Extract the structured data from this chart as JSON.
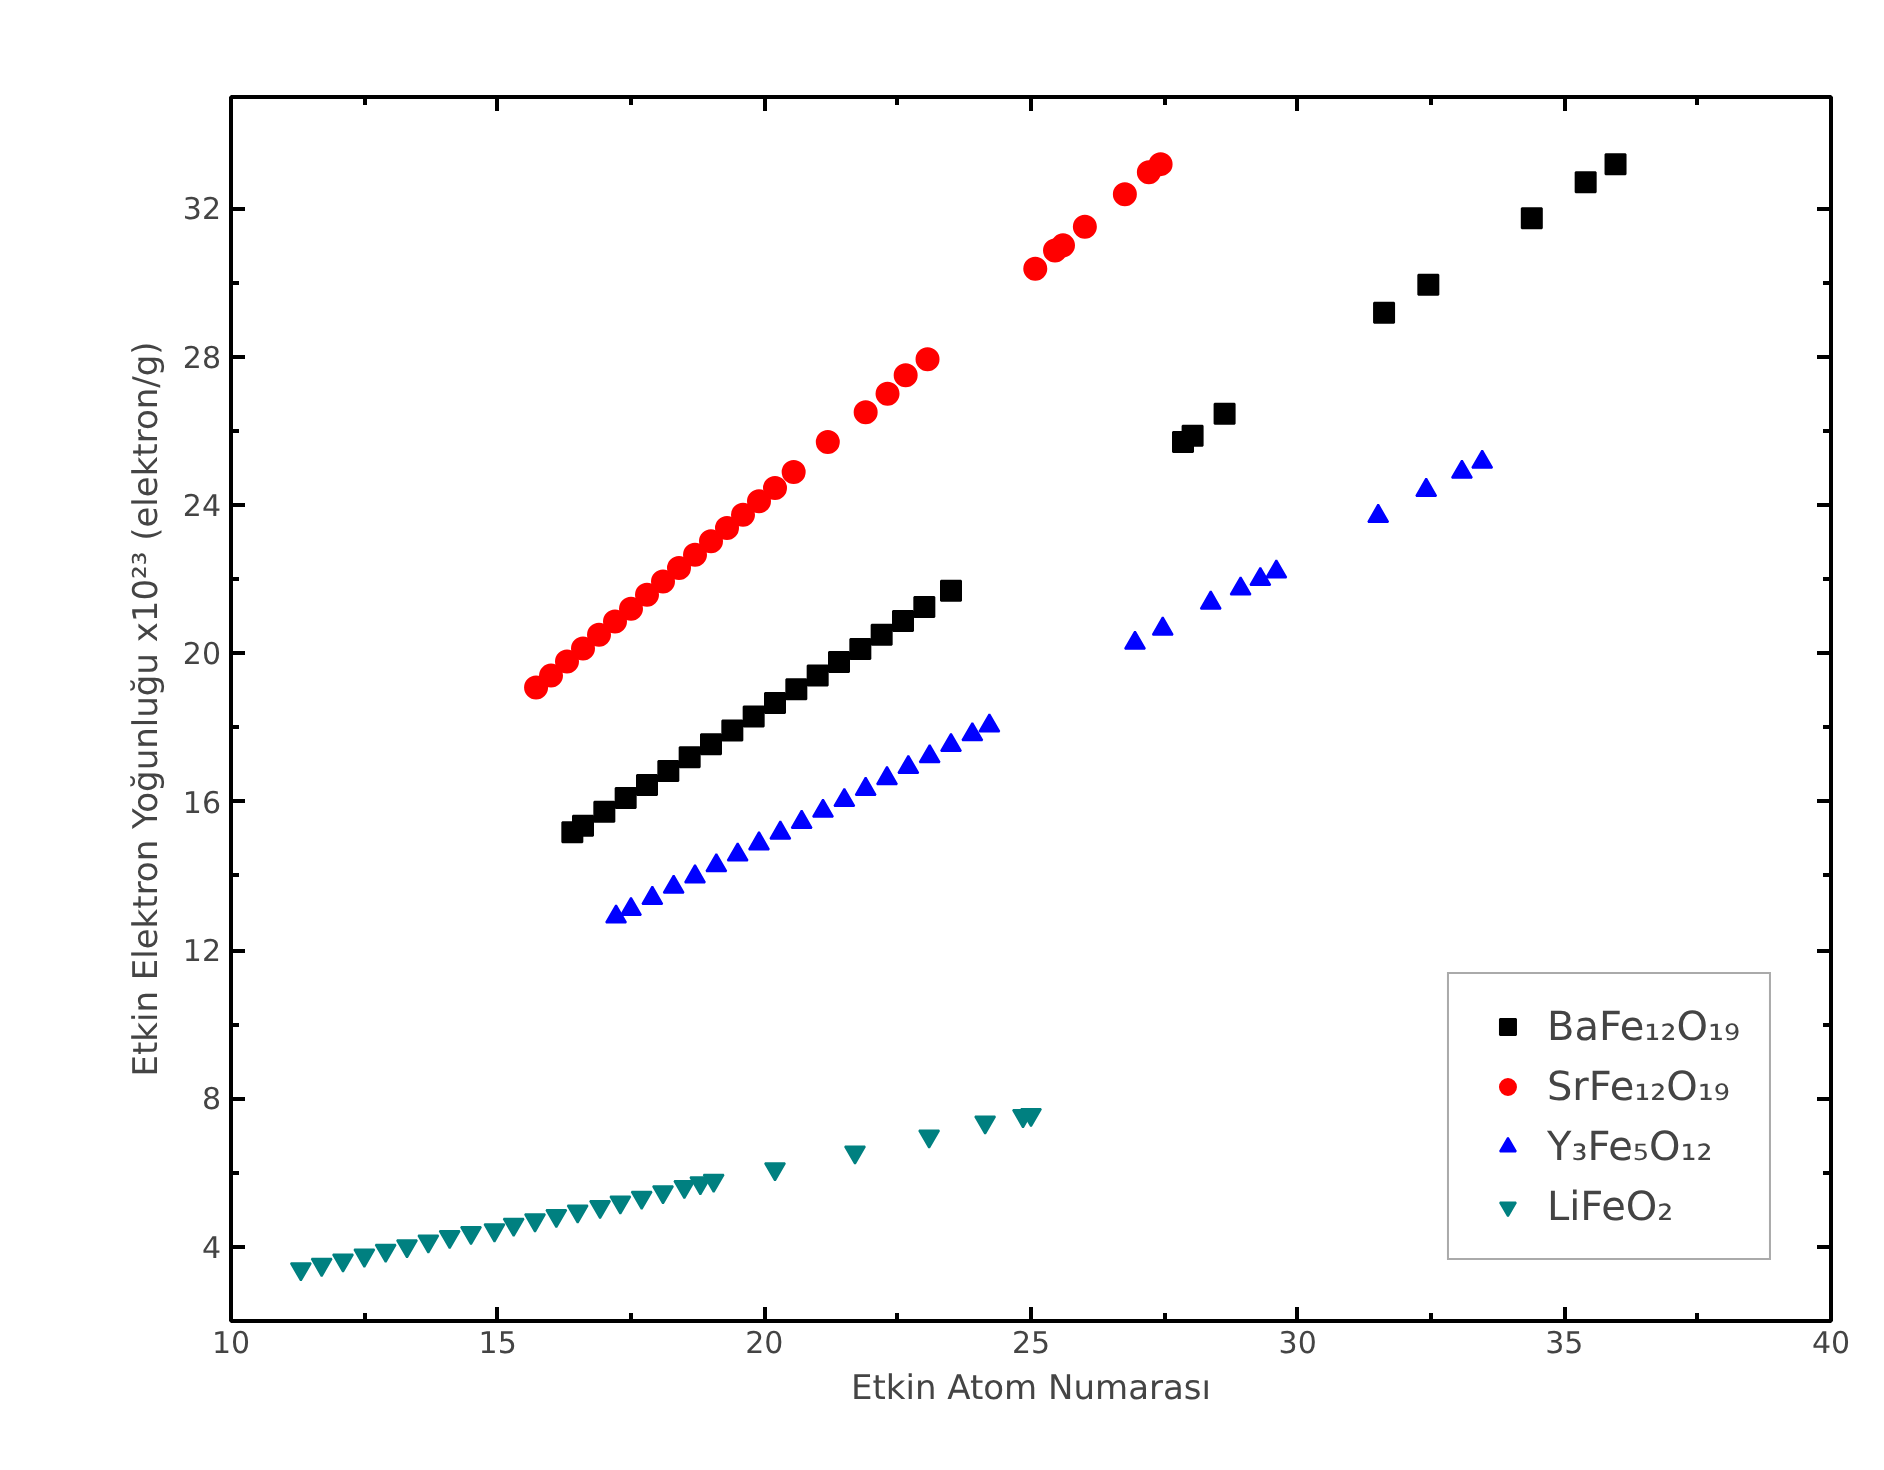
{
  "chart_data": {
    "type": "scatter",
    "xlabel": "Etkin Atom Numarası",
    "ylabel": "Etkin Elektron Yoğunluğu x10²³ (elektron/g)",
    "xlim": [
      10,
      40
    ],
    "xticks": [
      10,
      15,
      20,
      25,
      30,
      35,
      40
    ],
    "ylim": [
      2,
      35
    ],
    "yticks": [
      4,
      8,
      12,
      16,
      20,
      24,
      28,
      32
    ],
    "grid": false,
    "legend": "bottom right",
    "series": [
      {
        "name": "BaFe₁₂O₁₉",
        "color": "#000000",
        "marker": "square",
        "x": [
          16.4,
          16.6,
          17.0,
          17.4,
          17.8,
          18.2,
          18.6,
          19.0,
          19.4,
          19.8,
          20.2,
          20.6,
          21.0,
          21.4,
          21.8,
          22.2,
          22.6,
          23.0,
          23.5,
          27.85,
          28.03,
          28.63,
          31.62,
          32.45,
          34.39,
          35.4,
          35.96
        ],
        "values": [
          15.18,
          15.35,
          15.73,
          16.1,
          16.45,
          16.83,
          17.2,
          17.55,
          17.92,
          18.3,
          18.66,
          19.03,
          19.4,
          19.77,
          20.12,
          20.5,
          20.87,
          21.25,
          21.69,
          25.7,
          25.87,
          26.46,
          29.18,
          29.94,
          31.73,
          32.7,
          33.19
        ]
      },
      {
        "name": "SrFe₁₂O₁₉",
        "color": "#ff0000",
        "marker": "circle",
        "x": [
          15.72,
          16.0,
          16.3,
          16.6,
          16.9,
          17.2,
          17.5,
          17.8,
          18.1,
          18.4,
          18.7,
          19.0,
          19.3,
          19.6,
          19.9,
          20.2,
          20.55,
          21.19,
          21.9,
          22.31,
          22.65,
          23.06,
          25.08,
          25.45,
          25.6,
          26.01,
          26.76,
          27.21,
          27.43
        ],
        "values": [
          19.08,
          19.4,
          19.78,
          20.13,
          20.5,
          20.86,
          21.2,
          21.58,
          21.94,
          22.3,
          22.66,
          23.02,
          23.38,
          23.74,
          24.1,
          24.46,
          24.89,
          25.7,
          26.5,
          27.0,
          27.5,
          27.93,
          30.37,
          30.86,
          31.0,
          31.5,
          32.38,
          32.97,
          33.19
        ]
      },
      {
        "name": "Y₃Fe₅O₁₂",
        "color": "#0000ff",
        "marker": "triangle",
        "x": [
          17.22,
          17.5,
          17.9,
          18.3,
          18.7,
          19.1,
          19.5,
          19.9,
          20.3,
          20.7,
          21.1,
          21.5,
          21.9,
          22.3,
          22.7,
          23.1,
          23.5,
          23.9,
          24.22,
          26.95,
          27.47,
          28.37,
          28.93,
          29.3,
          29.6,
          31.51,
          32.41,
          33.08,
          33.46
        ],
        "values": [
          12.9,
          13.1,
          13.4,
          13.7,
          13.98,
          14.28,
          14.57,
          14.87,
          15.16,
          15.45,
          15.75,
          16.04,
          16.34,
          16.63,
          16.93,
          17.22,
          17.52,
          17.81,
          18.05,
          20.28,
          20.66,
          21.36,
          21.74,
          22.0,
          22.2,
          23.7,
          24.4,
          24.89,
          25.16
        ]
      },
      {
        "name": "LiFeO₂",
        "color": "#008080",
        "x": [
          11.31,
          11.7,
          12.1,
          12.5,
          12.9,
          13.3,
          13.7,
          14.1,
          14.5,
          14.94,
          15.3,
          15.7,
          16.1,
          16.5,
          16.92,
          17.3,
          17.7,
          18.1,
          18.5,
          18.8,
          19.05,
          20.2,
          21.7,
          23.09,
          24.14,
          24.85,
          25.0
        ],
        "values": [
          3.4,
          3.52,
          3.64,
          3.77,
          3.9,
          4.02,
          4.15,
          4.27,
          4.38,
          4.45,
          4.6,
          4.72,
          4.84,
          4.96,
          5.08,
          5.2,
          5.33,
          5.48,
          5.62,
          5.72,
          5.79,
          6.1,
          6.55,
          6.98,
          7.36,
          7.53,
          7.56
        ]
      }
    ]
  }
}
